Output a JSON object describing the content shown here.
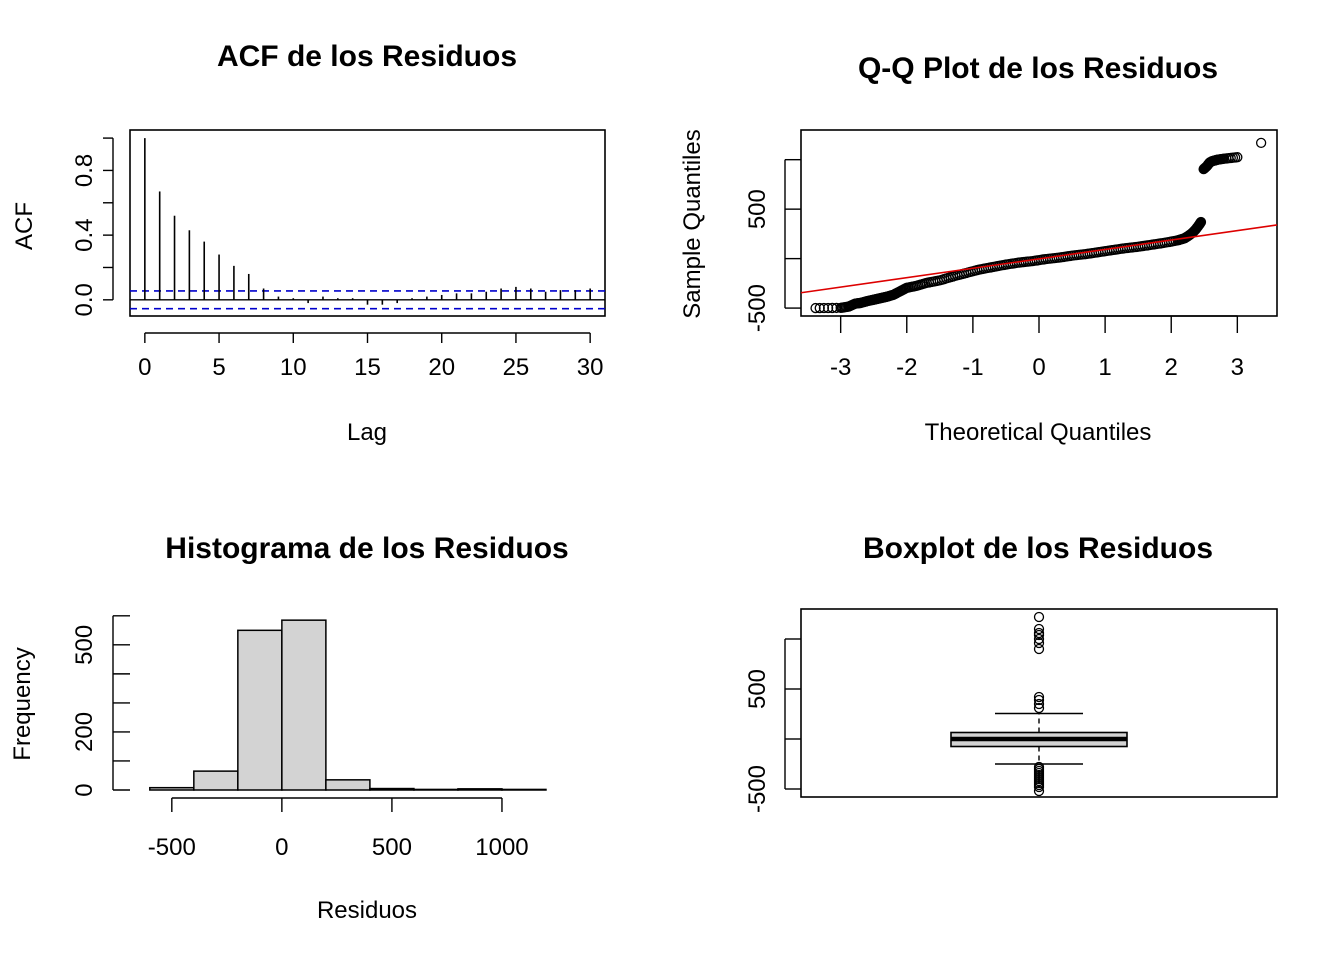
{
  "colors": {
    "ink": "#000000",
    "ci_line": "#0000cc",
    "ref_line": "#dd0000",
    "bar_fill": "#d3d3d3",
    "background": "#ffffff"
  },
  "chart_data": [
    {
      "type": "bar",
      "title": "ACF de los Residuos",
      "xlabel": "Lag",
      "ylabel": "ACF",
      "xlim": [
        -1,
        31
      ],
      "ylim": [
        -0.1,
        1.05
      ],
      "xticks": [
        "0",
        "5",
        "10",
        "15",
        "20",
        "25",
        "30"
      ],
      "yticks": [
        "0.0",
        "0.4",
        "0.8"
      ],
      "x": [
        0,
        1,
        2,
        3,
        4,
        5,
        6,
        7,
        8,
        9,
        10,
        11,
        12,
        13,
        14,
        15,
        16,
        17,
        18,
        19,
        20,
        21,
        22,
        23,
        24,
        25,
        26,
        27,
        28,
        29,
        30
      ],
      "values": [
        1.0,
        0.67,
        0.52,
        0.43,
        0.36,
        0.28,
        0.21,
        0.16,
        0.07,
        0.02,
        0.01,
        -0.02,
        0.02,
        0.01,
        0.01,
        -0.03,
        -0.03,
        -0.02,
        0.01,
        0.02,
        0.03,
        0.04,
        0.04,
        0.05,
        0.07,
        0.08,
        0.07,
        0.05,
        0.06,
        0.06,
        0.07
      ],
      "confidence_band": [
        -0.055,
        0.055
      ],
      "grid": false
    },
    {
      "type": "scatter",
      "title": "Q-Q Plot de los Residuos",
      "xlabel": "Theoretical Quantiles",
      "ylabel": "Sample Quantiles",
      "xlim": [
        -3.6,
        3.6
      ],
      "ylim": [
        -580,
        1300
      ],
      "xticks": [
        "-3",
        "-2",
        "-1",
        "0",
        "1",
        "2",
        "3"
      ],
      "yticks": [
        "-500",
        "500"
      ],
      "reference_line": {
        "x": [
          -3.6,
          3.6
        ],
        "y": [
          -345,
          340
        ]
      },
      "points": [
        [
          -3.38,
          -500
        ],
        [
          -3.0,
          -498
        ],
        [
          -2.88,
          -485
        ],
        [
          -2.78,
          -455
        ],
        [
          -2.7,
          -448
        ],
        [
          -2.6,
          -430
        ],
        [
          -2.5,
          -415
        ],
        [
          -2.4,
          -400
        ],
        [
          -2.3,
          -385
        ],
        [
          -2.2,
          -365
        ],
        [
          -2.1,
          -330
        ],
        [
          -2.0,
          -295
        ],
        [
          -1.85,
          -275
        ],
        [
          -1.7,
          -245
        ],
        [
          -1.5,
          -220
        ],
        [
          -1.3,
          -180
        ],
        [
          -1.1,
          -145
        ],
        [
          -0.9,
          -110
        ],
        [
          -0.7,
          -85
        ],
        [
          -0.5,
          -60
        ],
        [
          -0.3,
          -40
        ],
        [
          -0.1,
          -25
        ],
        [
          0.1,
          -5
        ],
        [
          0.3,
          10
        ],
        [
          0.5,
          30
        ],
        [
          0.7,
          45
        ],
        [
          0.9,
          65
        ],
        [
          1.1,
          85
        ],
        [
          1.3,
          105
        ],
        [
          1.5,
          120
        ],
        [
          1.7,
          140
        ],
        [
          1.9,
          160
        ],
        [
          2.1,
          185
        ],
        [
          2.2,
          205
        ],
        [
          2.26,
          230
        ],
        [
          2.32,
          260
        ],
        [
          2.37,
          295
        ],
        [
          2.42,
          340
        ],
        [
          2.45,
          370
        ],
        [
          2.49,
          905
        ],
        [
          2.54,
          935
        ],
        [
          2.58,
          970
        ],
        [
          2.62,
          985
        ],
        [
          2.7,
          1000
        ],
        [
          2.8,
          1010
        ],
        [
          3.0,
          1025
        ],
        [
          3.36,
          1170
        ]
      ],
      "grid": false
    },
    {
      "type": "bar",
      "title": "Histograma de los Residuos",
      "xlabel": "Residuos",
      "ylabel": "Frequency",
      "xlim": [
        -690,
        1400
      ],
      "ylim": [
        0,
        620
      ],
      "xticks": [
        "-500",
        "0",
        "500",
        "1000"
      ],
      "yticks": [
        "0",
        "200",
        "500"
      ],
      "bins": [
        [
          -600,
          -400
        ],
        [
          -400,
          -200
        ],
        [
          -200,
          0
        ],
        [
          0,
          200
        ],
        [
          200,
          400
        ],
        [
          400,
          600
        ],
        [
          600,
          800
        ],
        [
          800,
          1000
        ],
        [
          1000,
          1200
        ]
      ],
      "values": [
        8,
        65,
        550,
        585,
        35,
        5,
        2,
        4,
        2
      ],
      "grid": false
    },
    {
      "type": "box",
      "title": "Boxplot de los Residuos",
      "ylim": [
        -580,
        1300
      ],
      "yticks": [
        "-500",
        "500"
      ],
      "whisker_low": -250,
      "q1": -75,
      "median": 0,
      "q3": 65,
      "whisker_high": 255,
      "outliers": [
        -520,
        -480,
        -460,
        -440,
        -420,
        -400,
        -380,
        -360,
        -340,
        -320,
        -300,
        -280,
        310,
        350,
        390,
        420,
        900,
        960,
        1000,
        1040,
        1060,
        1100,
        1220
      ]
    }
  ]
}
